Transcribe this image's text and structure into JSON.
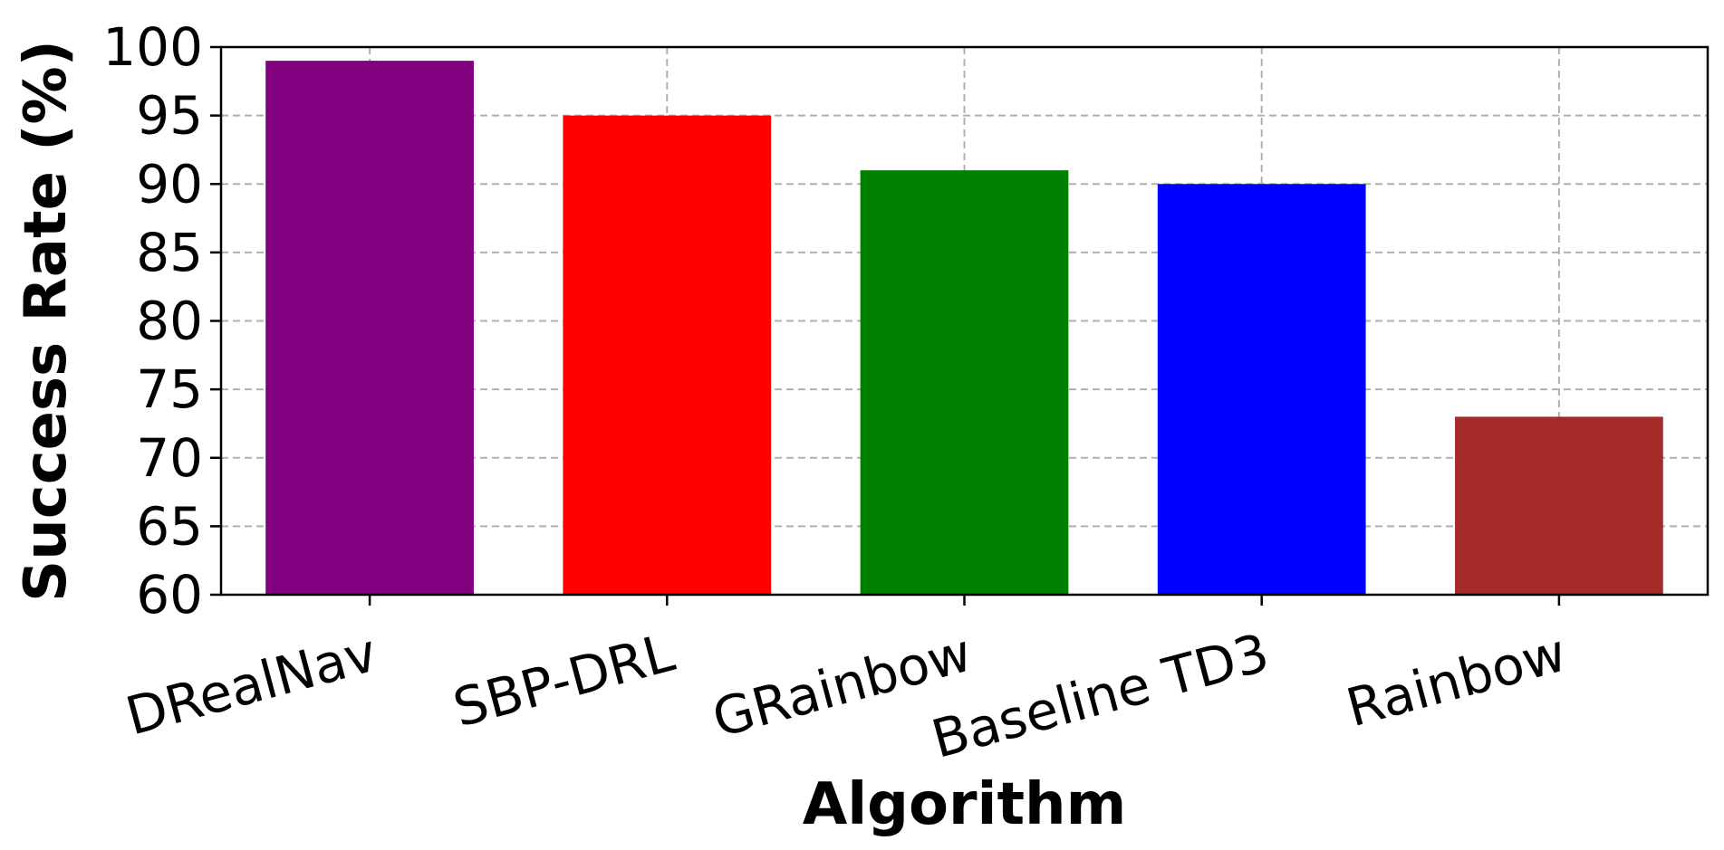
{
  "chart_data": {
    "type": "bar",
    "title": "",
    "xlabel": "Algorithm",
    "ylabel": "Success Rate (%)",
    "ylim": [
      60,
      100
    ],
    "yticks": [
      60,
      65,
      70,
      75,
      80,
      85,
      90,
      95,
      100
    ],
    "categories": [
      "DRealNav",
      "SBP-DRL",
      "GRainbow",
      "Baseline TD3",
      "Rainbow"
    ],
    "values": [
      99,
      95,
      91,
      90,
      73
    ],
    "colors": [
      "#800080",
      "#ff0000",
      "#008000",
      "#0000ff",
      "#a52a2a"
    ],
    "grid": true,
    "grid_color": "#b0b0b0",
    "xtick_rotation": 15,
    "legend": "none"
  }
}
